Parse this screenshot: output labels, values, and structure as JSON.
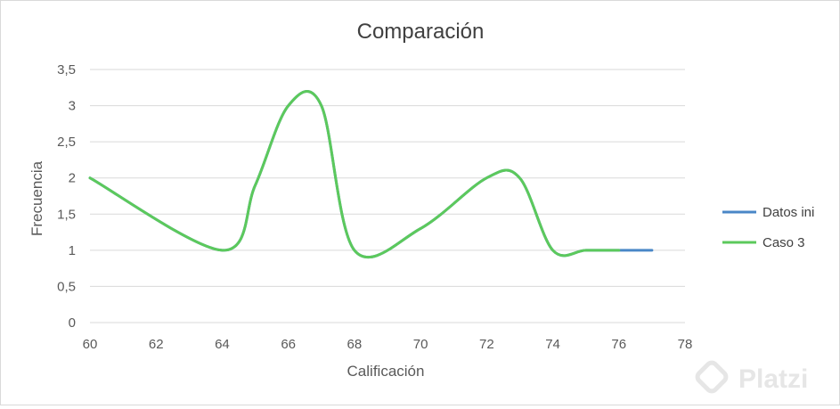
{
  "chart_data": {
    "type": "line",
    "title": "Comparación",
    "xlabel": "Calificación",
    "ylabel": "Frecuencia",
    "xlim": [
      60,
      78
    ],
    "ylim": [
      0,
      3.5
    ],
    "x_ticks": [
      "60",
      "62",
      "64",
      "66",
      "68",
      "70",
      "72",
      "74",
      "76",
      "78"
    ],
    "y_ticks": [
      "0",
      "0,5",
      "1",
      "1,5",
      "2",
      "2,5",
      "3",
      "3,5"
    ],
    "grid": true,
    "smooth": true,
    "legend_position": "right",
    "series": [
      {
        "name": "Datos ini",
        "color": "#4a87c7",
        "points": [
          [
            60,
            2
          ],
          [
            64,
            1
          ],
          [
            65,
            1.9
          ],
          [
            66,
            3
          ],
          [
            67,
            3
          ],
          [
            68,
            1
          ],
          [
            70,
            1.3
          ],
          [
            72,
            2
          ],
          [
            73,
            2
          ],
          [
            74,
            1
          ],
          [
            75,
            1
          ],
          [
            76,
            1
          ],
          [
            77,
            1
          ]
        ]
      },
      {
        "name": "Caso 3",
        "color": "#5cc95c",
        "points": [
          [
            60,
            2
          ],
          [
            64,
            1
          ],
          [
            65,
            1.9
          ],
          [
            66,
            3
          ],
          [
            67,
            3
          ],
          [
            68,
            1
          ],
          [
            70,
            1.3
          ],
          [
            72,
            2
          ],
          [
            73,
            2
          ],
          [
            74,
            1
          ],
          [
            75,
            1
          ],
          [
            76,
            1
          ]
        ]
      }
    ]
  },
  "watermark": {
    "text": "Platzi",
    "icon": "platzi-logo-icon"
  }
}
